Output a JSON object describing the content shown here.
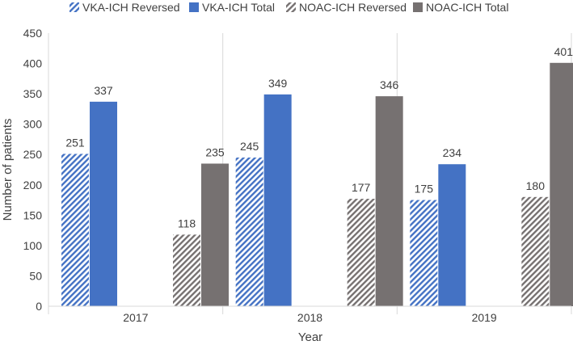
{
  "chart_data": {
    "type": "bar",
    "categories": [
      "2017",
      "2018",
      "2019"
    ],
    "series": [
      {
        "name": "VKA-ICH Reversed",
        "values": [
          251,
          245,
          175
        ],
        "color": "#4472c4",
        "pattern": "hatch"
      },
      {
        "name": "VKA-ICH Total",
        "values": [
          337,
          349,
          234
        ],
        "color": "#4472c4",
        "pattern": "solid"
      },
      {
        "name": "NOAC-ICH Reversed",
        "values": [
          118,
          177,
          180
        ],
        "color": "#767171",
        "pattern": "hatch"
      },
      {
        "name": "NOAC-ICH Total",
        "values": [
          235,
          346,
          401
        ],
        "color": "#767171",
        "pattern": "solid"
      }
    ],
    "title": "",
    "xlabel": "Year",
    "ylabel": "Number of patients",
    "ylim": [
      0,
      450
    ],
    "yticks": [
      0,
      50,
      100,
      150,
      200,
      250,
      300,
      350,
      400,
      450
    ],
    "legend": "top",
    "grid": "vertical separators between years"
  }
}
